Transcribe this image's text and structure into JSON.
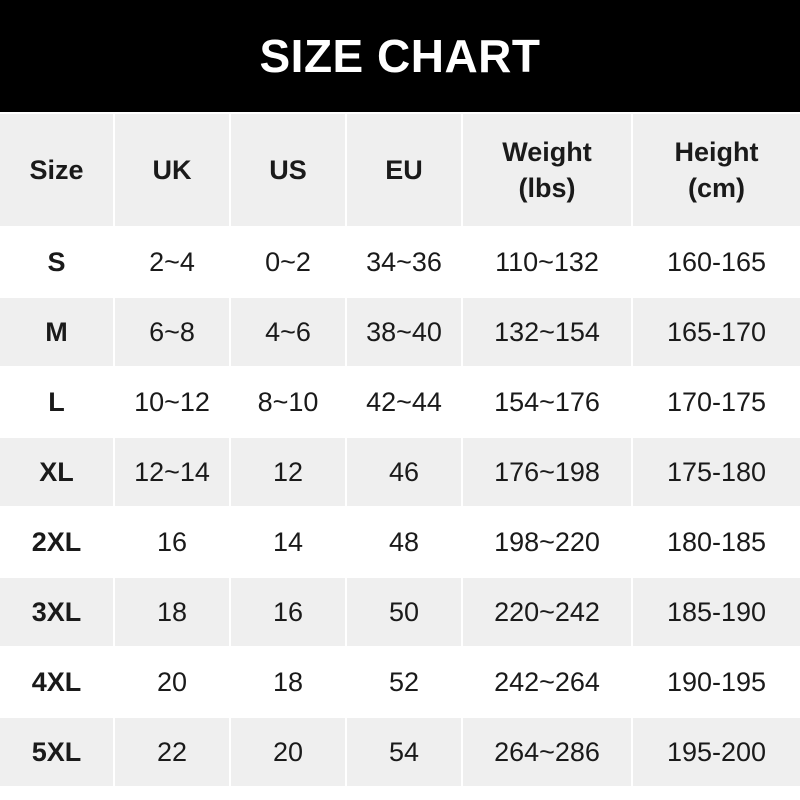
{
  "title": "SIZE CHART",
  "headers": [
    "Size",
    "UK",
    "US",
    "EU",
    "Weight\n(lbs)",
    "Height\n(cm)"
  ],
  "rows": [
    [
      "S",
      "2~4",
      "0~2",
      "34~36",
      "110~132",
      "160-165"
    ],
    [
      "M",
      "6~8",
      "4~6",
      "38~40",
      "132~154",
      "165-170"
    ],
    [
      "L",
      "10~12",
      "8~10",
      "42~44",
      "154~176",
      "170-175"
    ],
    [
      "XL",
      "12~14",
      "12",
      "46",
      "176~198",
      "175-180"
    ],
    [
      "2XL",
      "16",
      "14",
      "48",
      "198~220",
      "180-185"
    ],
    [
      "3XL",
      "18",
      "16",
      "50",
      "220~242",
      "185-190"
    ],
    [
      "4XL",
      "20",
      "18",
      "52",
      "242~264",
      "190-195"
    ],
    [
      "5XL",
      "22",
      "20",
      "54",
      "264~286",
      "195-200"
    ]
  ],
  "colors": {
    "banner": "#000000",
    "stripe": "#efefef",
    "text": "#1a1a1a"
  }
}
